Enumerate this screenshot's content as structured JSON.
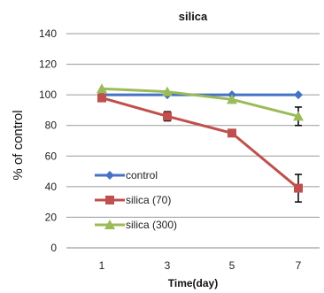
{
  "chart_data": {
    "type": "line",
    "title": "silica",
    "xlabel": "Time(day)",
    "ylabel": "% of control",
    "x": [
      1,
      3,
      5,
      7
    ],
    "ylim": [
      0,
      140
    ],
    "yticks": [
      0,
      20,
      40,
      60,
      80,
      100,
      120,
      140
    ],
    "grid": "horizontal",
    "legend_position": "bottom-left",
    "series": [
      {
        "name": "control",
        "color": "#4472C4",
        "marker": "diamond",
        "values": [
          100,
          100,
          100,
          100
        ],
        "errors": [
          0,
          0,
          0,
          0
        ]
      },
      {
        "name": "silica (70)",
        "color": "#C0504D",
        "marker": "square",
        "values": [
          98,
          86,
          75,
          39
        ],
        "errors": [
          0,
          3,
          0,
          9
        ]
      },
      {
        "name": "silica (300)",
        "color": "#9BBB59",
        "marker": "triangle",
        "values": [
          104,
          102,
          97,
          86
        ],
        "errors": [
          0,
          0,
          0,
          6
        ]
      }
    ]
  }
}
